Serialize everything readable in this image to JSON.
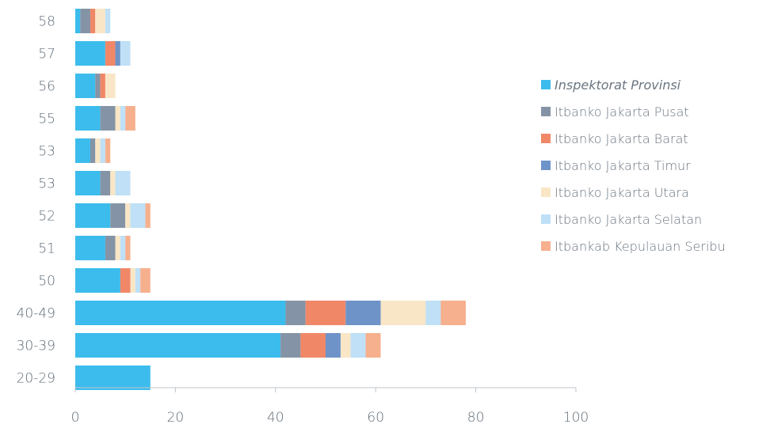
{
  "chart_data": {
    "type": "bar",
    "orientation": "horizontal",
    "stacked": true,
    "categories": [
      "58",
      "57",
      "56",
      "55",
      "53",
      "53",
      "52",
      "51",
      "50",
      "40-49",
      "30-39",
      "20-29"
    ],
    "series": [
      {
        "name": "Inspektorat Provinsi",
        "color": "#3cbcec",
        "values": [
          1,
          6,
          4,
          5,
          3,
          5,
          7,
          6,
          9,
          42,
          41,
          15
        ]
      },
      {
        "name": "Itbanko Jakarta Pusat",
        "color": "#8494a6",
        "values": [
          2,
          0,
          1,
          3,
          1,
          2,
          3,
          2,
          0,
          4,
          4,
          0
        ]
      },
      {
        "name": "Itbanko Jakarta Barat",
        "color": "#f08868",
        "values": [
          1,
          2,
          1,
          0,
          0,
          0,
          0,
          0,
          2,
          8,
          5,
          0
        ]
      },
      {
        "name": "Itbanko Jakarta Timur",
        "color": "#6e93c8",
        "values": [
          0,
          1,
          0,
          0,
          0,
          0,
          0,
          0,
          0,
          7,
          3,
          0
        ]
      },
      {
        "name": "Itbanko Jakarta Utara",
        "color": "#f8e6c6",
        "values": [
          2,
          0,
          2,
          1,
          1,
          1,
          1,
          1,
          1,
          9,
          2,
          0
        ]
      },
      {
        "name": "Itbanko Jakarta Selatan",
        "color": "#bfe0f6",
        "values": [
          1,
          2,
          0,
          1,
          1,
          3,
          3,
          1,
          1,
          3,
          3,
          0
        ]
      },
      {
        "name": "Itbankab Kepulauan Seribu",
        "color": "#f6b08e",
        "values": [
          0,
          0,
          0,
          2,
          1,
          0,
          1,
          1,
          2,
          5,
          3,
          0
        ]
      }
    ],
    "x_ticks": [
      "0",
      "20",
      "40",
      "60",
      "80",
      "100"
    ],
    "xlim": [
      0,
      100
    ],
    "grid": false,
    "legend_position": "right"
  }
}
